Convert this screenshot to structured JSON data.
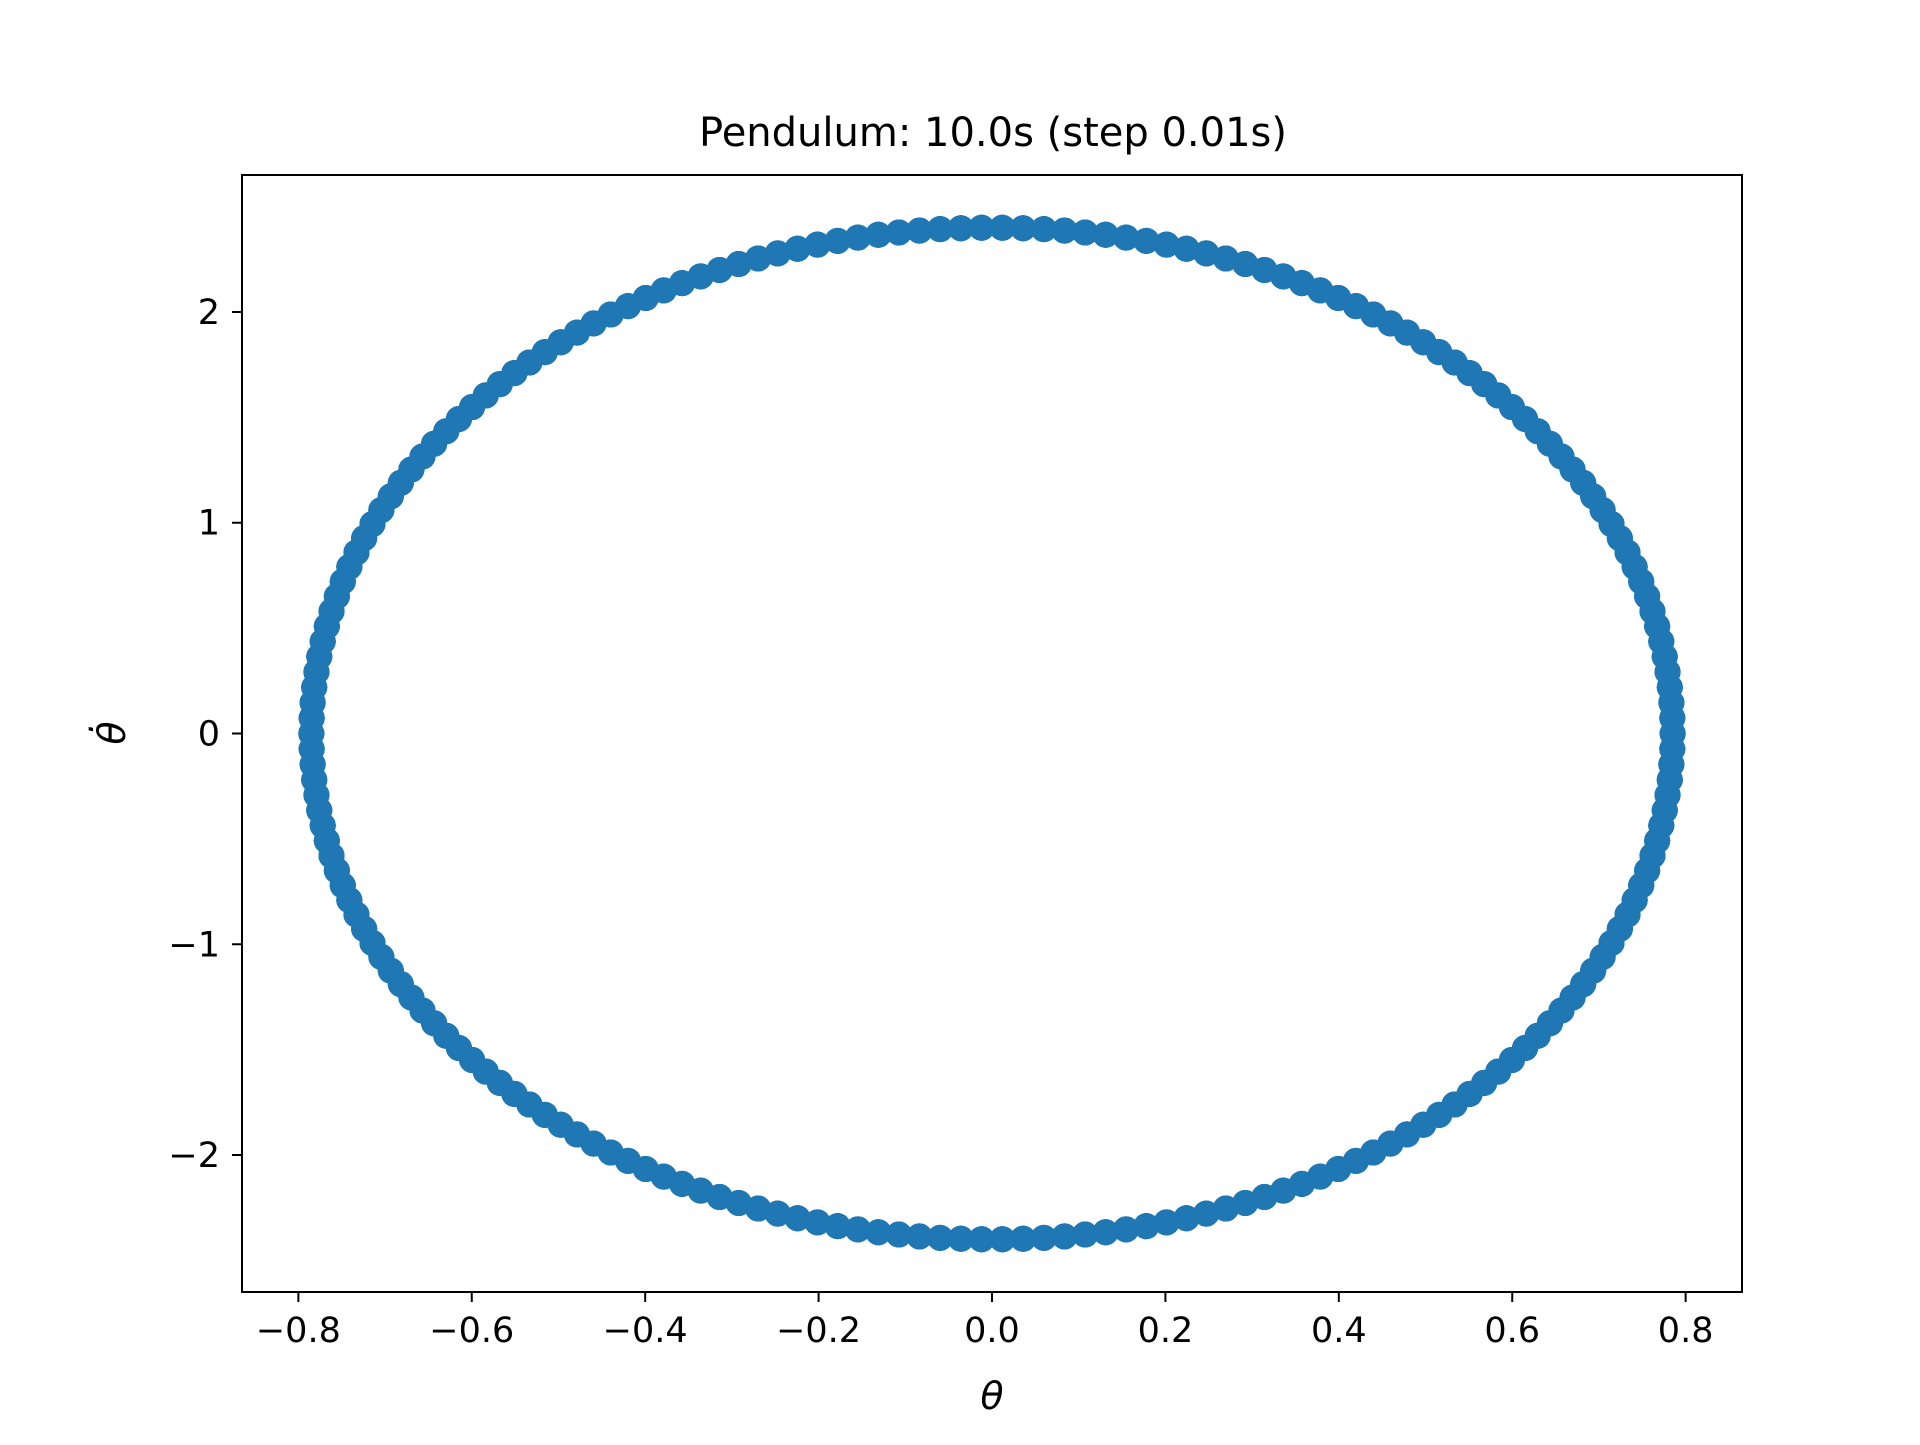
{
  "chart_data": {
    "type": "scatter",
    "title": "Pendulum: 10.0s (step 0.01s)",
    "xlabel": "θ",
    "ylabel": "θ̇",
    "xlim": [
      -0.865,
      0.865
    ],
    "ylim": [
      -2.65,
      2.65
    ],
    "xticks": [
      -0.8,
      -0.6,
      -0.4,
      -0.2,
      0.0,
      0.2,
      0.4,
      0.6,
      0.8
    ],
    "xtick_labels": [
      "−0.8",
      "−0.6",
      "−0.4",
      "−0.2",
      "0.0",
      "0.2",
      "0.4",
      "0.6",
      "0.8"
    ],
    "yticks": [
      -2,
      -1,
      0,
      1,
      2
    ],
    "ytick_labels": [
      "−2",
      "−1",
      "0",
      "1",
      "2"
    ],
    "grid": false,
    "legend": "none",
    "color": "#1f77b4",
    "series": [
      {
        "trajectory": "closed phase-space orbit of a pendulum",
        "theta_amplitude": 0.785,
        "thetadot_amplitude": 2.4,
        "duration_s": 10.0,
        "step_s": 0.01,
        "n_points": 1001
      }
    ]
  }
}
